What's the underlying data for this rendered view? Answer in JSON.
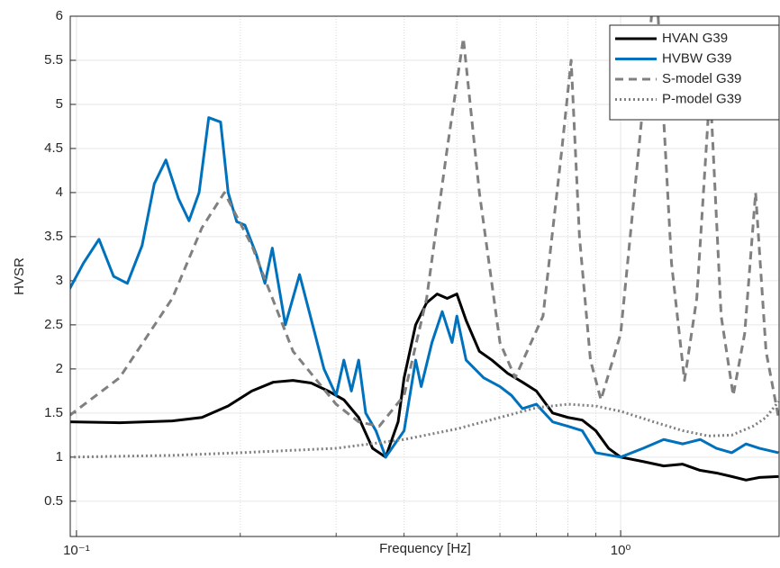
{
  "chart_data": {
    "type": "line",
    "xlabel": "Frequency [Hz]",
    "ylabel": "HVSR",
    "xscale": "log",
    "xlim": [
      0.0974,
      1.955
    ],
    "ylim": [
      0.1,
      6
    ],
    "xticks": [
      {
        "value": 0.1,
        "label": "10⁻¹"
      },
      {
        "value": 1,
        "label": "10⁰"
      }
    ],
    "xminorticks": [
      0.2,
      0.3,
      0.4,
      0.5,
      0.6,
      0.7,
      0.8,
      0.9
    ],
    "yticks": [
      0.5,
      1,
      1.5,
      2,
      2.5,
      3,
      3.5,
      4,
      4.5,
      5,
      5.5,
      6
    ],
    "grid": true,
    "legend": "northeast",
    "series": [
      {
        "name": "HVAN G39",
        "color": "#000000",
        "style": "solid",
        "x": [
          0.097,
          0.12,
          0.15,
          0.17,
          0.19,
          0.21,
          0.23,
          0.25,
          0.27,
          0.29,
          0.31,
          0.33,
          0.35,
          0.37,
          0.39,
          0.4,
          0.42,
          0.44,
          0.46,
          0.48,
          0.5,
          0.52,
          0.55,
          0.58,
          0.62,
          0.66,
          0.7,
          0.75,
          0.8,
          0.85,
          0.9,
          0.95,
          1.0,
          1.1,
          1.2,
          1.3,
          1.4,
          1.5,
          1.6,
          1.7,
          1.8,
          1.95
        ],
        "values": [
          1.4,
          1.39,
          1.41,
          1.45,
          1.58,
          1.75,
          1.85,
          1.87,
          1.84,
          1.75,
          1.65,
          1.45,
          1.1,
          1.0,
          1.4,
          1.9,
          2.5,
          2.75,
          2.85,
          2.8,
          2.85,
          2.55,
          2.2,
          2.1,
          1.95,
          1.85,
          1.75,
          1.5,
          1.45,
          1.42,
          1.3,
          1.1,
          1.0,
          0.95,
          0.9,
          0.92,
          0.85,
          0.82,
          0.78,
          0.74,
          0.77,
          0.78
        ]
      },
      {
        "name": "HVBW G39",
        "color": "#0072bd",
        "style": "solid",
        "x": [
          0.097,
          0.103,
          0.11,
          0.117,
          0.124,
          0.132,
          0.139,
          0.146,
          0.154,
          0.161,
          0.168,
          0.175,
          0.184,
          0.19,
          0.197,
          0.204,
          0.214,
          0.222,
          0.229,
          0.242,
          0.257,
          0.269,
          0.285,
          0.3,
          0.31,
          0.32,
          0.33,
          0.34,
          0.355,
          0.37,
          0.4,
          0.42,
          0.43,
          0.45,
          0.47,
          0.49,
          0.5,
          0.52,
          0.56,
          0.6,
          0.63,
          0.66,
          0.7,
          0.75,
          0.8,
          0.85,
          0.9,
          1.0,
          1.1,
          1.2,
          1.3,
          1.4,
          1.5,
          1.6,
          1.7,
          1.8,
          1.95
        ],
        "values": [
          2.9,
          3.2,
          3.47,
          3.05,
          2.97,
          3.4,
          4.1,
          4.37,
          3.93,
          3.68,
          4.0,
          4.85,
          4.8,
          4.0,
          3.67,
          3.63,
          3.3,
          2.97,
          3.37,
          2.5,
          3.07,
          2.6,
          2.0,
          1.7,
          2.1,
          1.75,
          2.1,
          1.5,
          1.3,
          1.0,
          1.3,
          2.1,
          1.8,
          2.3,
          2.65,
          2.3,
          2.6,
          2.1,
          1.9,
          1.8,
          1.7,
          1.55,
          1.6,
          1.4,
          1.35,
          1.3,
          1.05,
          1.0,
          1.1,
          1.2,
          1.15,
          1.2,
          1.1,
          1.05,
          1.15,
          1.1,
          1.05
        ]
      },
      {
        "name": "S-model G39",
        "color": "#808080",
        "style": "dashed",
        "x": [
          0.097,
          0.12,
          0.15,
          0.17,
          0.187,
          0.21,
          0.25,
          0.3,
          0.33,
          0.36,
          0.4,
          0.44,
          0.48,
          0.514,
          0.55,
          0.6,
          0.64,
          0.72,
          0.78,
          0.811,
          0.84,
          0.88,
          0.92,
          1.0,
          1.08,
          1.16,
          1.24,
          1.31,
          1.38,
          1.46,
          1.53,
          1.61,
          1.69,
          1.77,
          1.85,
          1.95
        ],
        "values": [
          1.47,
          1.9,
          2.8,
          3.6,
          4.0,
          3.4,
          2.2,
          1.6,
          1.4,
          1.35,
          1.7,
          2.8,
          4.5,
          5.75,
          4.0,
          2.3,
          1.9,
          2.6,
          4.5,
          5.5,
          3.5,
          2.1,
          1.65,
          2.4,
          4.5,
          6.5,
          3.2,
          1.87,
          2.8,
          5.2,
          2.6,
          1.7,
          2.4,
          4.0,
          2.2,
          1.45
        ]
      },
      {
        "name": "P-model G39",
        "color": "#808080",
        "style": "dotted",
        "x": [
          0.097,
          0.15,
          0.2,
          0.3,
          0.4,
          0.5,
          0.6,
          0.7,
          0.8,
          0.9,
          1.0,
          1.15,
          1.3,
          1.45,
          1.6,
          1.75,
          1.85,
          1.95
        ],
        "values": [
          1.0,
          1.02,
          1.05,
          1.1,
          1.2,
          1.32,
          1.45,
          1.56,
          1.6,
          1.58,
          1.52,
          1.4,
          1.3,
          1.24,
          1.25,
          1.35,
          1.45,
          1.63
        ]
      }
    ]
  }
}
